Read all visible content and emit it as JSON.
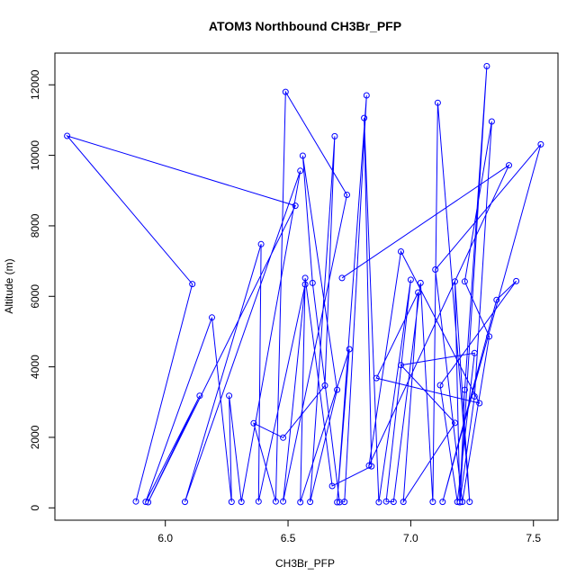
{
  "chart_data": {
    "type": "line",
    "title": "ATOM3 Northbound CH3Br_PFP",
    "xlabel": "CH3Br_PFP",
    "ylabel": "Altitude (m)",
    "xlim": [
      5.55,
      7.6
    ],
    "ylim": [
      -350,
      12900
    ],
    "xticks": [
      "6.0",
      "6.5",
      "7.0",
      "7.5"
    ],
    "yticks": [
      "0",
      "2000",
      "4000",
      "6000",
      "8000",
      "10000",
      "12000"
    ],
    "xtick_values": [
      6.0,
      6.5,
      7.0,
      7.5
    ],
    "ytick_values": [
      0,
      2000,
      4000,
      6000,
      8000,
      10000,
      12000
    ],
    "grid": false,
    "color": "#0000ff",
    "series": [
      {
        "x": [
          5.88,
          6.11,
          5.6,
          6.53,
          5.93,
          6.14,
          5.92,
          6.19,
          6.27,
          6.26,
          6.31,
          6.55,
          6.08,
          6.39,
          6.38,
          6.57,
          6.48,
          6.74,
          6.49,
          6.45,
          6.36,
          6.48,
          6.65,
          6.69,
          6.59,
          6.7,
          6.56,
          6.6,
          6.71,
          6.73,
          6.82,
          6.7,
          6.75,
          6.55,
          6.57,
          6.68,
          6.84,
          6.81,
          6.87,
          7.0,
          6.9,
          6.93,
          7.04,
          7.09,
          7.11,
          7.24,
          7.18,
          7.2,
          7.31,
          7.22,
          7.2,
          7.26,
          7.33,
          7.22,
          7.32,
          7.21,
          7.1,
          7.53,
          7.13,
          7.35,
          7.43,
          7.12,
          7.19,
          7.26,
          6.96,
          7.18,
          6.97,
          7.03,
          6.86,
          7.28,
          6.96,
          6.83,
          7.4,
          6.72
        ],
        "y": [
          180,
          6350,
          10550,
          8570,
          160,
          3180,
          170,
          5400,
          170,
          3180,
          170,
          9560,
          170,
          7480,
          180,
          6340,
          180,
          8880,
          11800,
          180,
          2400,
          1990,
          3470,
          10540,
          170,
          3350,
          9990,
          6380,
          160,
          170,
          11700,
          160,
          4500,
          160,
          6520,
          620,
          1180,
          11060,
          160,
          6470,
          180,
          170,
          6380,
          170,
          11490,
          170,
          6420,
          160,
          12530,
          3350,
          160,
          3160,
          10960,
          6420,
          4860,
          170,
          6760,
          10310,
          170,
          5900,
          6430,
          3480,
          170,
          4390,
          4050,
          2410,
          170,
          6110,
          3680,
          2970,
          7270,
          1200,
          9720,
          6520
        ]
      }
    ]
  }
}
